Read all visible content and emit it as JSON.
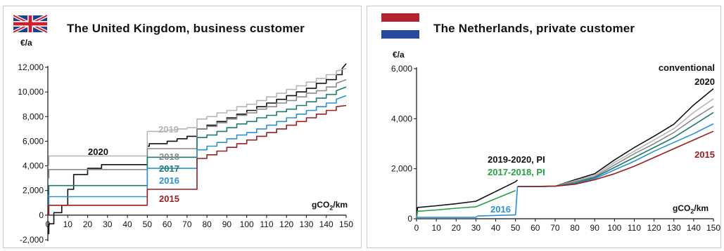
{
  "colors": {
    "c2020": "#111111",
    "c2019": "#b5b5b5",
    "c2018": "#8a8a8a",
    "c2017": "#1d7a6e",
    "c2016": "#2b8fd8",
    "c2015": "#9a1c1f",
    "nl_2019_2020": "#111111",
    "nl_2017_2018": "#24a140",
    "nl_2016": "#2b8fd8"
  },
  "uk": {
    "title": "The United Kingdom, business customer",
    "yunit": "€/a",
    "xunit": "gCO",
    "xunit_sub": "2",
    "xunit_tail": "/km",
    "flag": "uk-flag"
  },
  "nl": {
    "title": "The Netherlands, private customer",
    "yunit": "€/a",
    "xunit": "gCO",
    "xunit_sub": "2",
    "xunit_tail": "/km",
    "flag": "netherlands-flag"
  },
  "chart_data": [
    {
      "type": "line",
      "title": "The United Kingdom, business customer",
      "ylabel": "€/a",
      "xlabel": "gCO2/km",
      "xlim": [
        0,
        150
      ],
      "ylim": [
        -2000,
        12000
      ],
      "xticks": [
        "0",
        "10",
        "20",
        "30",
        "40",
        "50",
        "60",
        "70",
        "80",
        "90",
        "100",
        "110",
        "120",
        "130",
        "140",
        "150"
      ],
      "yticks": [
        "-2,000",
        "0",
        "2,000",
        "4,000",
        "6,000",
        "8,000",
        "10,000",
        "12,000"
      ],
      "series": [
        {
          "name": "2020",
          "color_key": "c2020",
          "x": [
            0,
            0.5,
            0.5,
            3,
            3,
            7,
            7,
            10,
            10,
            13,
            13,
            20,
            20,
            27,
            27,
            30,
            30,
            50,
            50,
            51,
            51,
            60,
            60,
            65,
            65,
            70,
            70,
            75,
            75,
            80,
            80,
            85,
            85,
            90,
            90,
            95,
            95,
            100,
            100,
            105,
            105,
            110,
            110,
            115,
            115,
            120,
            120,
            125,
            125,
            130,
            130,
            135,
            135,
            140,
            140,
            145,
            145,
            148,
            148,
            150
          ],
          "y": [
            -1500,
            -1500,
            -700,
            -700,
            200,
            200,
            800,
            800,
            2100,
            2100,
            3300,
            3300,
            3800,
            3800,
            4100,
            4100,
            4100,
            4100,
            5600,
            5600,
            5800,
            5800,
            6000,
            6000,
            6200,
            6200,
            6400,
            6400,
            7000,
            7000,
            7300,
            7300,
            7600,
            7600,
            7900,
            7900,
            8200,
            8200,
            8500,
            8500,
            8800,
            8800,
            9100,
            9100,
            9400,
            9400,
            9700,
            9700,
            10000,
            10000,
            10300,
            10300,
            10700,
            10700,
            11000,
            11000,
            11400,
            11400,
            11900,
            12300
          ]
        },
        {
          "name": "2019",
          "color_key": "c2019",
          "x": [
            0,
            0.5,
            0.5,
            50,
            50,
            60,
            60,
            65,
            65,
            70,
            70,
            75,
            75,
            80,
            80,
            85,
            85,
            90,
            90,
            95,
            95,
            100,
            100,
            105,
            105,
            110,
            110,
            115,
            115,
            120,
            120,
            125,
            125,
            130,
            130,
            135,
            135,
            140,
            140,
            145,
            145,
            150
          ],
          "y": [
            4000,
            4000,
            4800,
            4800,
            6800,
            6800,
            6900,
            6900,
            7000,
            7000,
            7100,
            7100,
            7800,
            7800,
            8000,
            8000,
            8300,
            8300,
            8500,
            8500,
            8800,
            8800,
            9000,
            9000,
            9300,
            9300,
            9600,
            9600,
            9900,
            9900,
            10200,
            10200,
            10500,
            10500,
            10800,
            10800,
            11100,
            11100,
            11400,
            11400,
            11700,
            11900
          ]
        },
        {
          "name": "2018",
          "color_key": "c2018",
          "x": [
            0,
            0.5,
            0.5,
            50,
            50,
            75,
            75,
            80,
            80,
            85,
            85,
            90,
            90,
            95,
            95,
            100,
            100,
            105,
            105,
            110,
            110,
            115,
            115,
            120,
            120,
            125,
            125,
            130,
            130,
            135,
            135,
            140,
            140,
            145,
            145,
            150
          ],
          "y": [
            3000,
            3000,
            3700,
            3700,
            5400,
            5400,
            7000,
            7000,
            7200,
            7200,
            7500,
            7500,
            7800,
            7800,
            8100,
            8100,
            8300,
            8300,
            8600,
            8600,
            8800,
            8800,
            9100,
            9100,
            9300,
            9300,
            9600,
            9600,
            9900,
            9900,
            10100,
            10100,
            10400,
            10400,
            10700,
            11000
          ]
        },
        {
          "name": "2017",
          "color_key": "c2017",
          "x": [
            0,
            0.5,
            0.5,
            50,
            50,
            75,
            75,
            80,
            80,
            85,
            85,
            90,
            90,
            95,
            95,
            100,
            100,
            105,
            105,
            110,
            110,
            115,
            115,
            120,
            120,
            125,
            125,
            130,
            130,
            135,
            135,
            140,
            140,
            145,
            145,
            150
          ],
          "y": [
            1600,
            1600,
            2400,
            2400,
            4700,
            4700,
            6300,
            6300,
            6500,
            6500,
            6800,
            6800,
            7100,
            7100,
            7400,
            7400,
            7600,
            7600,
            7900,
            7900,
            8100,
            8100,
            8400,
            8400,
            8600,
            8600,
            8900,
            8900,
            9200,
            9200,
            9500,
            9500,
            9800,
            9800,
            10100,
            10400
          ]
        },
        {
          "name": "2016",
          "color_key": "c2016",
          "x": [
            0,
            0.5,
            0.5,
            50,
            50,
            75,
            75,
            80,
            80,
            85,
            85,
            90,
            90,
            95,
            95,
            100,
            100,
            105,
            105,
            110,
            110,
            115,
            115,
            120,
            120,
            125,
            125,
            130,
            130,
            135,
            135,
            140,
            140,
            145,
            145,
            150
          ],
          "y": [
            800,
            800,
            1500,
            1500,
            3800,
            3800,
            5300,
            5300,
            5600,
            5600,
            5900,
            5900,
            6200,
            6200,
            6500,
            6500,
            6700,
            6700,
            7000,
            7000,
            7300,
            7300,
            7600,
            7600,
            7900,
            7900,
            8200,
            8200,
            8500,
            8500,
            8800,
            8800,
            9100,
            9100,
            9400,
            9700
          ]
        },
        {
          "name": "2015",
          "color_key": "c2015",
          "x": [
            0,
            0.5,
            0.5,
            50,
            50,
            75,
            75,
            80,
            80,
            85,
            85,
            90,
            90,
            95,
            95,
            100,
            100,
            105,
            105,
            110,
            110,
            115,
            115,
            120,
            120,
            125,
            125,
            130,
            130,
            135,
            135,
            140,
            140,
            145,
            145,
            150
          ],
          "y": [
            0,
            0,
            800,
            800,
            2100,
            2100,
            4600,
            4600,
            4900,
            4900,
            5200,
            5200,
            5500,
            5500,
            5800,
            5800,
            6100,
            6100,
            6400,
            6400,
            6700,
            6700,
            7000,
            7000,
            7300,
            7300,
            7600,
            7600,
            7900,
            7900,
            8200,
            8200,
            8500,
            8500,
            8800,
            8900
          ]
        }
      ]
    },
    {
      "type": "line",
      "title": "The Netherlands, private customer",
      "ylabel": "€/a",
      "xlabel": "gCO2/km",
      "xlim": [
        0,
        150
      ],
      "ylim": [
        0,
        6000
      ],
      "xticks": [
        "0",
        "10",
        "20",
        "30",
        "40",
        "50",
        "60",
        "70",
        "80",
        "90",
        "100",
        "110",
        "120",
        "130",
        "140",
        "150"
      ],
      "yticks": [
        "0",
        "2,000",
        "4,000",
        "6,000"
      ],
      "series": [
        {
          "name": "2019-2020, PI",
          "color_key": "nl_2019_2020",
          "x": [
            0,
            0.5,
            10,
            20,
            30,
            50,
            51
          ],
          "y": [
            0,
            450,
            520,
            600,
            700,
            1480,
            1550
          ]
        },
        {
          "name": "2017-2018, PI",
          "color_key": "nl_2017_2018",
          "x": [
            0,
            0.5,
            10,
            20,
            30,
            50
          ],
          "y": [
            0,
            300,
            350,
            420,
            480,
            1130
          ]
        },
        {
          "name": "2016",
          "color_key": "nl_2016",
          "x": [
            0,
            0.5,
            10,
            30,
            31,
            49,
            50,
            51
          ],
          "y": [
            0,
            60,
            60,
            60,
            110,
            150,
            150,
            1290
          ]
        },
        {
          "name": "conventional 2020",
          "color_key": "c2020",
          "x": [
            51,
            60,
            70,
            80,
            90,
            100,
            110,
            120,
            130,
            140,
            150
          ],
          "y": [
            1290,
            1290,
            1300,
            1560,
            1800,
            2350,
            2850,
            3300,
            3780,
            4550,
            5200
          ]
        },
        {
          "name": "",
          "color_key": "c2019",
          "x": [
            51,
            60,
            70,
            80,
            90,
            100,
            110,
            120,
            130,
            140,
            150
          ],
          "y": [
            1290,
            1290,
            1300,
            1520,
            1730,
            2250,
            2700,
            3150,
            3600,
            4250,
            4800
          ]
        },
        {
          "name": "",
          "color_key": "c2018",
          "x": [
            51,
            60,
            70,
            80,
            90,
            100,
            110,
            120,
            130,
            140,
            150
          ],
          "y": [
            1290,
            1290,
            1300,
            1480,
            1680,
            2150,
            2600,
            3000,
            3450,
            4000,
            4500
          ]
        },
        {
          "name": "",
          "color_key": "c2017",
          "x": [
            51,
            60,
            70,
            80,
            90,
            100,
            110,
            120,
            130,
            140,
            150
          ],
          "y": [
            1290,
            1290,
            1300,
            1430,
            1650,
            2050,
            2450,
            2850,
            3250,
            3750,
            4250
          ]
        },
        {
          "name": "",
          "color_key": "c2016",
          "x": [
            51,
            60,
            70,
            80,
            90,
            100,
            110,
            120,
            130,
            140,
            150
          ],
          "y": [
            1290,
            1290,
            1300,
            1400,
            1600,
            1950,
            2300,
            2700,
            3050,
            3400,
            3800
          ]
        },
        {
          "name": "2015",
          "color_key": "c2015",
          "x": [
            51,
            60,
            70,
            80,
            90,
            100,
            110,
            120,
            130,
            140,
            150
          ],
          "y": [
            1290,
            1290,
            1300,
            1380,
            1560,
            1800,
            2100,
            2450,
            2800,
            3150,
            3500
          ]
        }
      ]
    }
  ]
}
